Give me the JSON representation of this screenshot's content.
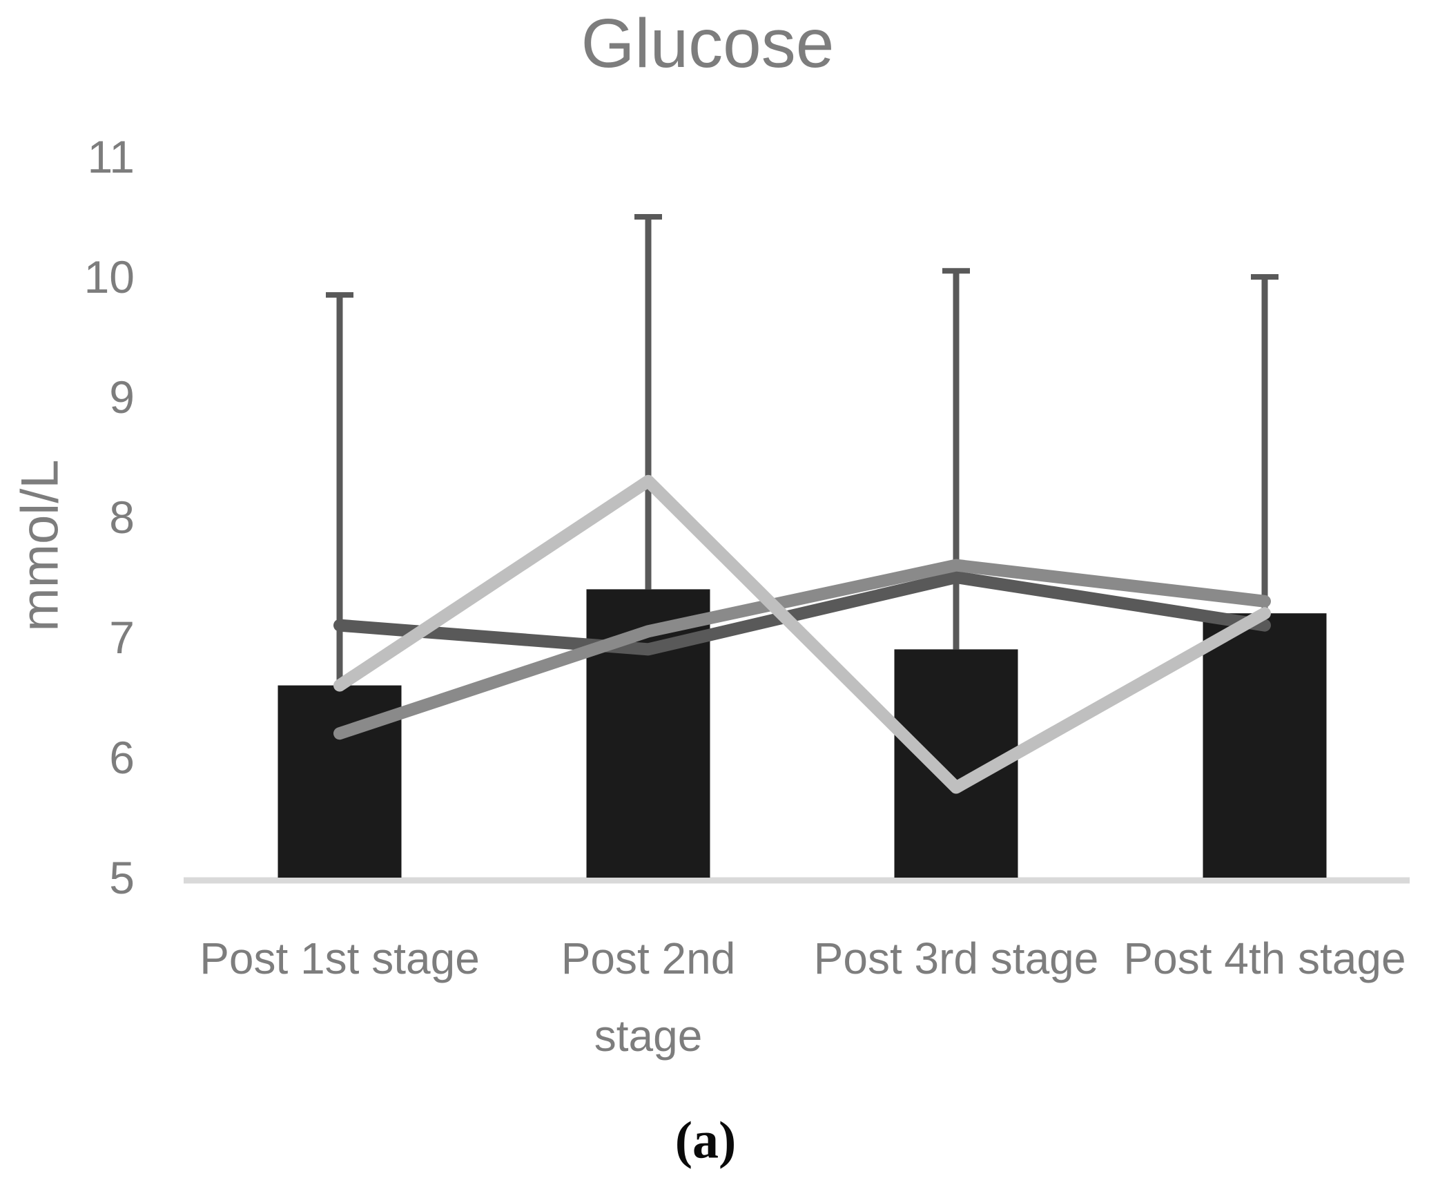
{
  "title": "Glucose",
  "y_axis_title": "mmol/L",
  "caption": "(a)",
  "colors": {
    "bar": "#1b1b1b",
    "error_bar": "#595959",
    "axis_line": "#d9d9d9",
    "text": "#7d7d7d",
    "series": [
      "#595959",
      "#8a8a8a",
      "#bfbfbf"
    ]
  },
  "chart_data": {
    "type": "bar+line",
    "title": "Glucose",
    "xlabel": "",
    "ylabel": "mmol/L",
    "ylim": [
      5,
      11
    ],
    "yticks": [
      5,
      6,
      7,
      8,
      9,
      10,
      11
    ],
    "grid": false,
    "legend_position": "none",
    "categories": [
      "Post 1st stage",
      "Post 2nd stage",
      "Post 3rd stage",
      "Post 4th stage"
    ],
    "category_label_lines": [
      [
        "Post 1st stage"
      ],
      [
        "Post 2nd",
        "stage"
      ],
      [
        "Post 3rd stage"
      ],
      [
        "Post 4th stage"
      ]
    ],
    "bars": {
      "name": "mean glucose (black bars)",
      "values": [
        6.6,
        7.4,
        6.9,
        7.2
      ],
      "error_upper": [
        3.25,
        3.1,
        3.15,
        2.8
      ],
      "error_bar_tops": [
        9.85,
        10.5,
        10.05,
        10.0
      ]
    },
    "series": [
      {
        "name": "dark-gray line",
        "color": "#595959",
        "values": [
          7.1,
          6.9,
          7.5,
          7.1
        ]
      },
      {
        "name": "medium-gray line",
        "color": "#8a8a8a",
        "values": [
          6.2,
          7.05,
          7.6,
          7.3
        ]
      },
      {
        "name": "light-gray line",
        "color": "#bfbfbf",
        "values": [
          6.6,
          8.3,
          5.75,
          7.2
        ]
      }
    ]
  }
}
